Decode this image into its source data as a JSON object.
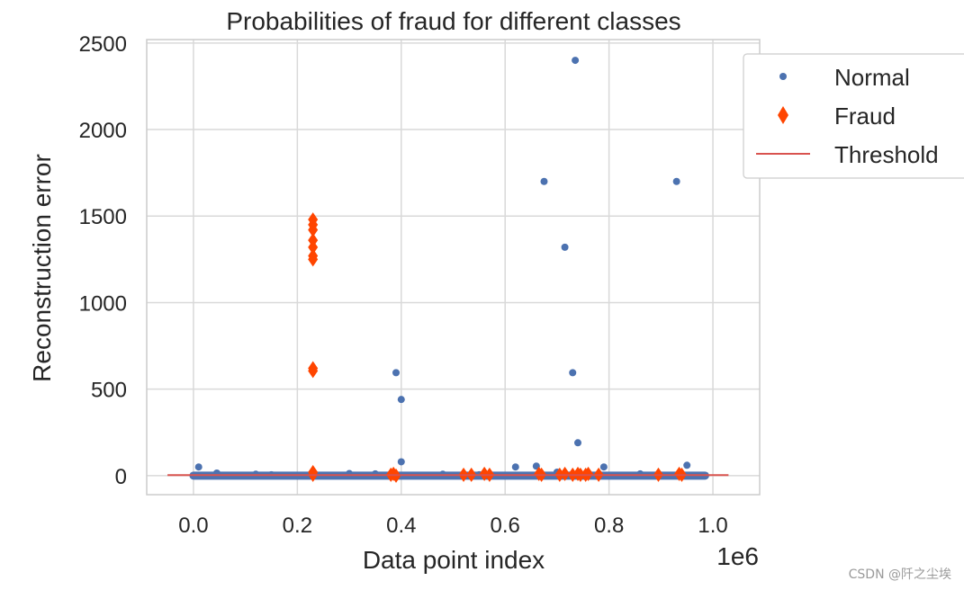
{
  "chart_data": {
    "type": "scatter",
    "title": "Probabilities of fraud for different classes",
    "xlabel": "Data point index",
    "ylabel": "Reconstruction error",
    "x_offset_text": "1e6",
    "xlim": [
      -0.09,
      1.09
    ],
    "ylim": [
      -110,
      2520
    ],
    "x_ticks": [
      0.0,
      0.2,
      0.4,
      0.6,
      0.8,
      1.0
    ],
    "x_tick_labels": [
      "0.0",
      "0.2",
      "0.4",
      "0.6",
      "0.8",
      "1.0"
    ],
    "y_ticks": [
      0,
      500,
      1000,
      1500,
      2000,
      2500
    ],
    "y_tick_labels": [
      "0",
      "500",
      "1000",
      "1500",
      "2000",
      "2500"
    ],
    "grid": true,
    "legend_position": "upper-right-outside",
    "colors": {
      "normal": "#4c72b0",
      "fraud": "#ff4500",
      "threshold": "#d9534f"
    },
    "series": [
      {
        "name": "Normal",
        "marker": "circle",
        "x": [
          0.01,
          0.045,
          0.12,
          0.35,
          0.39,
          0.4,
          0.4,
          0.62,
          0.66,
          0.675,
          0.715,
          0.73,
          0.735,
          0.74,
          0.79,
          0.93,
          0.95,
          0.15,
          0.3,
          0.48,
          0.55,
          0.7,
          0.86
        ],
        "y": [
          50,
          15,
          8,
          10,
          595,
          440,
          80,
          50,
          55,
          1700,
          1320,
          595,
          2400,
          190,
          50,
          1700,
          60,
          5,
          12,
          8,
          5,
          20,
          10
        ]
      },
      {
        "name": "Fraud",
        "marker": "thin_diamond",
        "x": [
          0.23,
          0.23,
          0.23,
          0.23,
          0.23,
          0.23,
          0.23,
          0.23,
          0.23,
          0.23,
          0.23,
          0.38,
          0.385,
          0.39,
          0.52,
          0.535,
          0.56,
          0.57,
          0.665,
          0.67,
          0.705,
          0.715,
          0.73,
          0.74,
          0.745,
          0.755,
          0.76,
          0.78,
          0.895,
          0.935,
          0.94
        ],
        "y": [
          1480,
          1450,
          1420,
          1360,
          1320,
          1270,
          1250,
          620,
          605,
          20,
          5,
          5,
          10,
          0,
          5,
          5,
          10,
          5,
          10,
          5,
          5,
          10,
          5,
          10,
          5,
          5,
          10,
          5,
          5,
          10,
          5
        ]
      },
      {
        "name": "Threshold",
        "marker": "line",
        "x": [
          -0.05,
          1.03
        ],
        "y": [
          2.9,
          2.9
        ]
      }
    ]
  },
  "watermark": "CSDN @阡之尘埃"
}
